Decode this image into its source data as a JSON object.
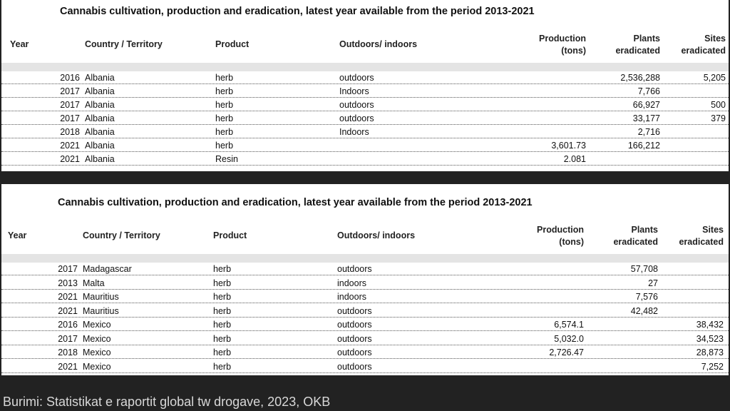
{
  "tables": [
    {
      "title": "Cannabis cultivation, production and eradication, latest year available from the period 2013-2021",
      "headers": [
        [
          "Year"
        ],
        [
          "Country / Territory"
        ],
        [
          "Product"
        ],
        [
          "Outdoors/  indoors"
        ],
        [
          "Production",
          "(tons)"
        ],
        [
          "Plants",
          "eradicated"
        ],
        [
          "Sites",
          "eradicated"
        ]
      ],
      "rows": [
        [
          "2016",
          "Albania",
          "herb",
          "outdoors",
          null,
          "2,536,288",
          "5,205"
        ],
        [
          "2017",
          "Albania",
          "herb",
          "Indoors",
          null,
          "7,766",
          null
        ],
        [
          "2017",
          "Albania",
          "herb",
          "outdoors",
          null,
          "66,927",
          "500"
        ],
        [
          "2017",
          "Albania",
          "herb",
          "outdoors",
          null,
          "33,177",
          "379"
        ],
        [
          "2018",
          "Albania",
          "herb",
          "Indoors",
          null,
          "2,716",
          null
        ],
        [
          "2021",
          "Albania",
          "herb",
          null,
          "3,601.73",
          "166,212",
          null
        ],
        [
          "2021",
          "Albania",
          "Resin",
          null,
          "2.081",
          null,
          null
        ]
      ]
    },
    {
      "title": "Cannabis cultivation, production and eradication, latest year available from the period 2013-2021",
      "headers": [
        [
          "Year"
        ],
        [
          "Country / Territory"
        ],
        [
          "Product"
        ],
        [
          "Outdoors/  indoors"
        ],
        [
          "Production",
          "(tons)"
        ],
        [
          "Plants",
          "eradicated"
        ],
        [
          "Sites",
          "eradicated"
        ]
      ],
      "rows": [
        [
          "2017",
          "Madagascar",
          "herb",
          "outdoors",
          null,
          "57,708",
          null
        ],
        [
          "2013",
          "Malta",
          "herb",
          "indoors",
          null,
          "27",
          null
        ],
        [
          "2021",
          "Mauritius",
          "herb",
          "indoors",
          null,
          "7,576",
          null
        ],
        [
          "2021",
          "Mauritius",
          "herb",
          "outdoors",
          null,
          "42,482",
          null
        ],
        [
          "2016",
          "Mexico",
          "herb",
          "outdoors",
          "6,574.1",
          null,
          "38,432"
        ],
        [
          "2017",
          "Mexico",
          "herb",
          "outdoors",
          "5,032.0",
          null,
          "34,523"
        ],
        [
          "2018",
          "Mexico",
          "herb",
          "outdoors",
          "2,726.47",
          null,
          "28,873"
        ],
        [
          "2021",
          "Mexico",
          "herb",
          "outdoors",
          null,
          null,
          "7,252"
        ]
      ]
    }
  ],
  "caption": "Burimi: Statistikat e raportit global tw drogave, 2023, OKB"
}
